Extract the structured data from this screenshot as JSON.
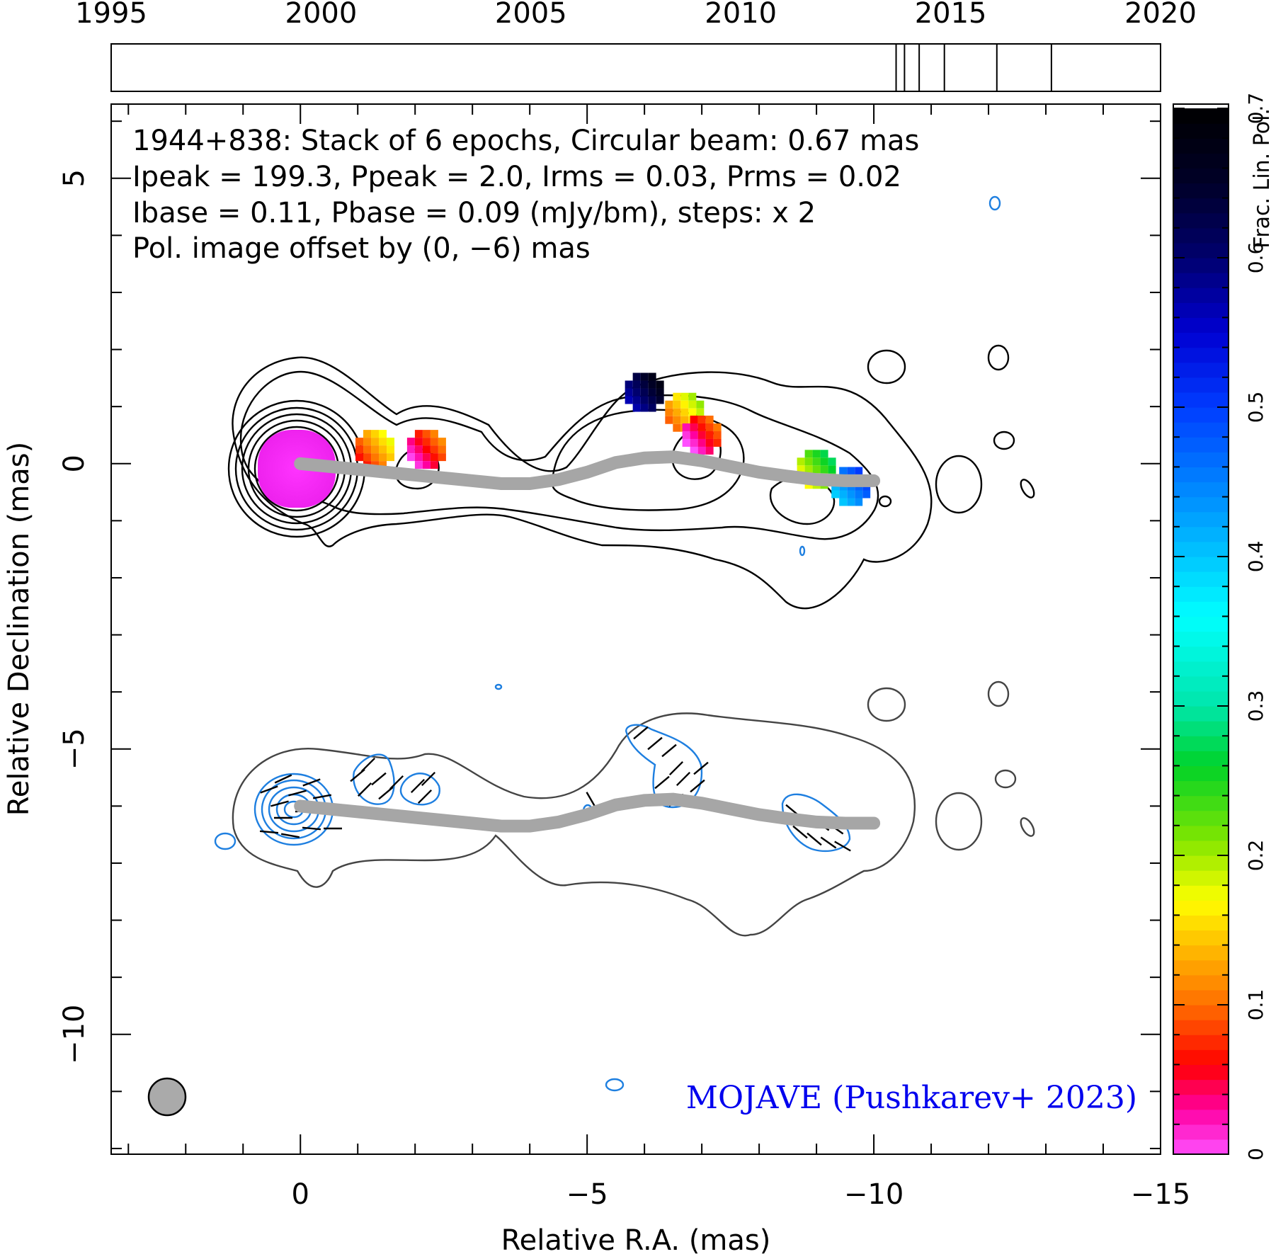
{
  "figure": {
    "annotation_lines": [
      "1944+838: Stack of 6 epochs, Circular beam: 0.67 mas",
      "Ipeak = 199.3, Ppeak = 2.0, Irms = 0.03, Prms = 0.02",
      "Ibase = 0.11, Pbase = 0.09 (mJy/bm), steps: x 2"
    ],
    "offset_note": "Pol. image offset by (0, −6) mas",
    "credit": "MOJAVE (Pushkarev+ 2023)",
    "colors": {
      "stokes_i_contours": "#000000",
      "pol_contours": "#1e7fe0",
      "ridge_line": "#a6a6a6",
      "offset_note": "#1e7fe0",
      "credit": "#0000ee",
      "beam_fill": "#aaaaaa",
      "lower_i_contour": "#444444"
    }
  },
  "chart_data": [
    {
      "type": "timeline",
      "xlim": [
        1995,
        2020
      ],
      "tick_labels": [
        "1995",
        "2000",
        "2005",
        "2010",
        "2015",
        "2020"
      ],
      "tick_values": [
        1995,
        2000,
        2005,
        2010,
        2015,
        2020
      ],
      "epoch_markers": [
        2013.7,
        2013.9,
        2014.25,
        2014.85,
        2016.1,
        2017.4
      ]
    },
    {
      "type": "heatmap",
      "subtype": "radio map (stacked VLBA image with contours and fractional polarization)",
      "source": "1944+838",
      "xlabel": "Relative R.A. (mas)",
      "ylabel": "Relative Declination (mas)",
      "xlim": [
        3.3,
        -15.0
      ],
      "ylim": [
        -12.1,
        6.3
      ],
      "x_tick_labels": [
        "0",
        "−5",
        "−10",
        "−15"
      ],
      "x_tick_values": [
        0,
        -5,
        -10,
        -15
      ],
      "y_tick_labels": [
        "5",
        "0",
        "−5",
        "−10"
      ],
      "y_tick_values": [
        5,
        0,
        -5,
        -10
      ],
      "beam_mas": 0.67,
      "peak_intensity_mJy_per_beam": 199.3,
      "peak_pol_mJy_per_beam": 2.0,
      "rms_intensity_mJy_per_beam": 0.03,
      "rms_pol_mJy_per_beam": 0.02,
      "base_intensity_mJy_per_beam": 0.11,
      "base_pol_mJy_per_beam": 0.09,
      "contour_step_factor": 2,
      "pol_offset_mas": [
        0,
        -6
      ],
      "ridge_line": {
        "x": [
          0,
          -0.5,
          -1,
          -1.5,
          -2,
          -2.5,
          -3,
          -3.5,
          -4,
          -4.5,
          -5,
          -5.5,
          -6,
          -6.5,
          -7,
          -7.5,
          -8,
          -8.5,
          -9,
          -9.5,
          -10
        ],
        "y": [
          0,
          -0.05,
          -0.1,
          -0.15,
          -0.2,
          -0.25,
          -0.3,
          -0.35,
          -0.35,
          -0.28,
          -0.15,
          0.02,
          0.1,
          0.12,
          0.05,
          -0.05,
          -0.15,
          -0.22,
          -0.28,
          -0.3,
          -0.3
        ]
      },
      "fractional_polarization_patches": [
        {
          "x": -1.3,
          "y": 0.25,
          "frac": 0.12
        },
        {
          "x": -2.2,
          "y": 0.25,
          "frac": 0.06
        },
        {
          "x": -6.0,
          "y": 1.25,
          "frac": 0.62
        },
        {
          "x": -6.7,
          "y": 0.9,
          "frac": 0.15
        },
        {
          "x": -7.0,
          "y": 0.5,
          "frac": 0.05
        },
        {
          "x": -9.0,
          "y": -0.1,
          "frac": 0.22
        },
        {
          "x": -9.6,
          "y": -0.4,
          "frac": 0.45
        }
      ]
    },
    {
      "type": "colorbar",
      "label": "Frac. Lin. Pol.",
      "range": [
        0,
        0.7
      ],
      "tick_labels": [
        "0",
        "0.1",
        "0.2",
        "0.3",
        "0.4",
        "0.5",
        "0.6",
        "0.7"
      ],
      "tick_values": [
        0,
        0.1,
        0.2,
        0.3,
        0.4,
        0.5,
        0.6,
        0.7
      ]
    }
  ]
}
